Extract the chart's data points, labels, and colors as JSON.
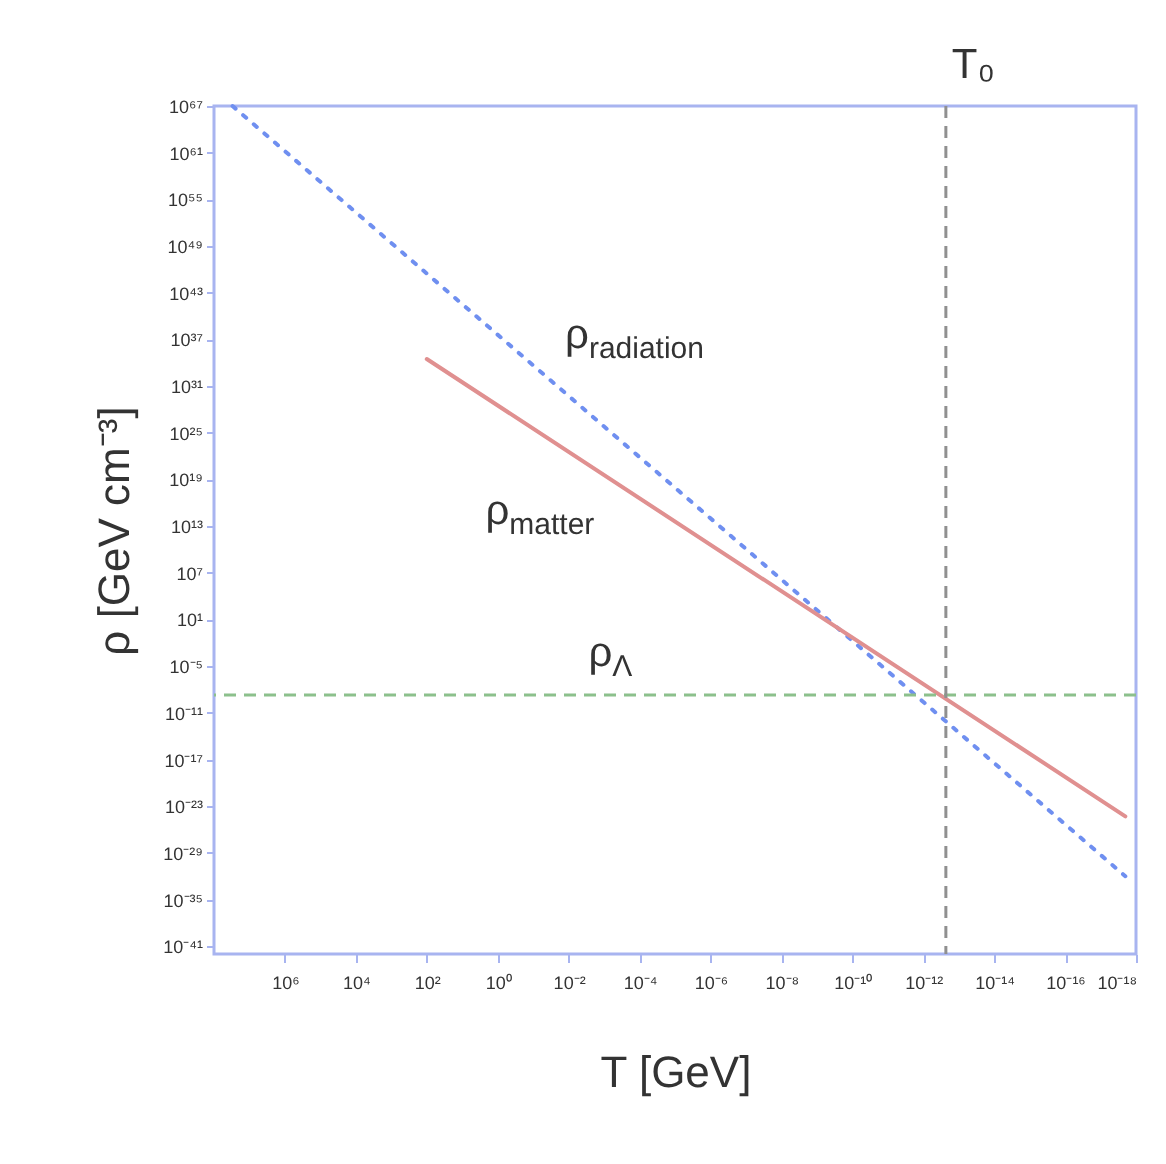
{
  "chart_data": {
    "type": "line",
    "xlabel": "T [GeV]",
    "ylabel": "ρ [GeV cm⁻³]",
    "log": "xy",
    "grid": false,
    "marker": "none",
    "xlim": [
      100000000.0,
      1e-18
    ],
    "ylim": [
      1e-42,
      1e+67
    ],
    "xticks": [
      {
        "value": 1000000.0,
        "label": "10⁶"
      },
      {
        "value": 10000.0,
        "label": "10⁴"
      },
      {
        "value": 100.0,
        "label": "10²"
      },
      {
        "value": 1,
        "label": "10⁰"
      },
      {
        "value": 0.01,
        "label": "10⁻²"
      },
      {
        "value": 0.0001,
        "label": "10⁻⁴"
      },
      {
        "value": 1e-06,
        "label": "10⁻⁶"
      },
      {
        "value": 1e-08,
        "label": "10⁻⁸"
      },
      {
        "value": 1e-10,
        "label": "10⁻¹⁰"
      },
      {
        "value": 1e-12,
        "label": "10⁻¹²"
      },
      {
        "value": 1e-14,
        "label": "10⁻¹⁴"
      },
      {
        "value": 1e-16,
        "label": "10⁻¹⁶"
      },
      {
        "value": 1e-18,
        "label": "10⁻¹⁸"
      }
    ],
    "yticks": [
      {
        "value": 1e+67,
        "label": "10⁶⁷"
      },
      {
        "value": 1e+61,
        "label": "10⁶¹"
      },
      {
        "value": 1e+55,
        "label": "10⁵⁵"
      },
      {
        "value": 1e+49,
        "label": "10⁴⁹"
      },
      {
        "value": 1e+43,
        "label": "10⁴³"
      },
      {
        "value": 1e+37,
        "label": "10³⁷"
      },
      {
        "value": 1e+31,
        "label": "10³¹"
      },
      {
        "value": 1e+25,
        "label": "10²⁵"
      },
      {
        "value": 1e+19,
        "label": "10¹⁹"
      },
      {
        "value": 10000000000000.0,
        "label": "10¹³"
      },
      {
        "value": 10000000.0,
        "label": "10⁷"
      },
      {
        "value": 10,
        "label": "10¹"
      },
      {
        "value": 1e-05,
        "label": "10⁻⁵"
      },
      {
        "value": 1e-11,
        "label": "10⁻¹¹"
      },
      {
        "value": 1e-17,
        "label": "10⁻¹⁷"
      },
      {
        "value": 1e-23,
        "label": "10⁻²³"
      },
      {
        "value": 1e-29,
        "label": "10⁻²⁹"
      },
      {
        "value": 1e-35,
        "label": "10⁻³⁵"
      },
      {
        "value": 1e-41,
        "label": "10⁻⁴¹"
      }
    ],
    "series": [
      {
        "name": "ρ$_{radiation}$",
        "color": "#6f8ff0",
        "line_style": "dotted",
        "x": [
          30000000.0,
          2e-18
        ],
        "values": [
          1e+67,
          1e-32
        ]
      },
      {
        "name": "ρ$_{matter}$",
        "color": "#e09090",
        "line_style": "solid",
        "x": [
          100.0,
          2e-18
        ],
        "values": [
          3e+34,
          5e-25
        ]
      }
    ],
    "ref_lines": [
      {
        "axis": "y",
        "value": 2e-09,
        "label": "ρ$_{Λ}$",
        "color": "#8cc08c",
        "line_style": "dashed"
      },
      {
        "axis": "x",
        "value": 2.3e-13,
        "label": "T₀",
        "color": "#909090",
        "line_style": "dashed"
      }
    ]
  }
}
